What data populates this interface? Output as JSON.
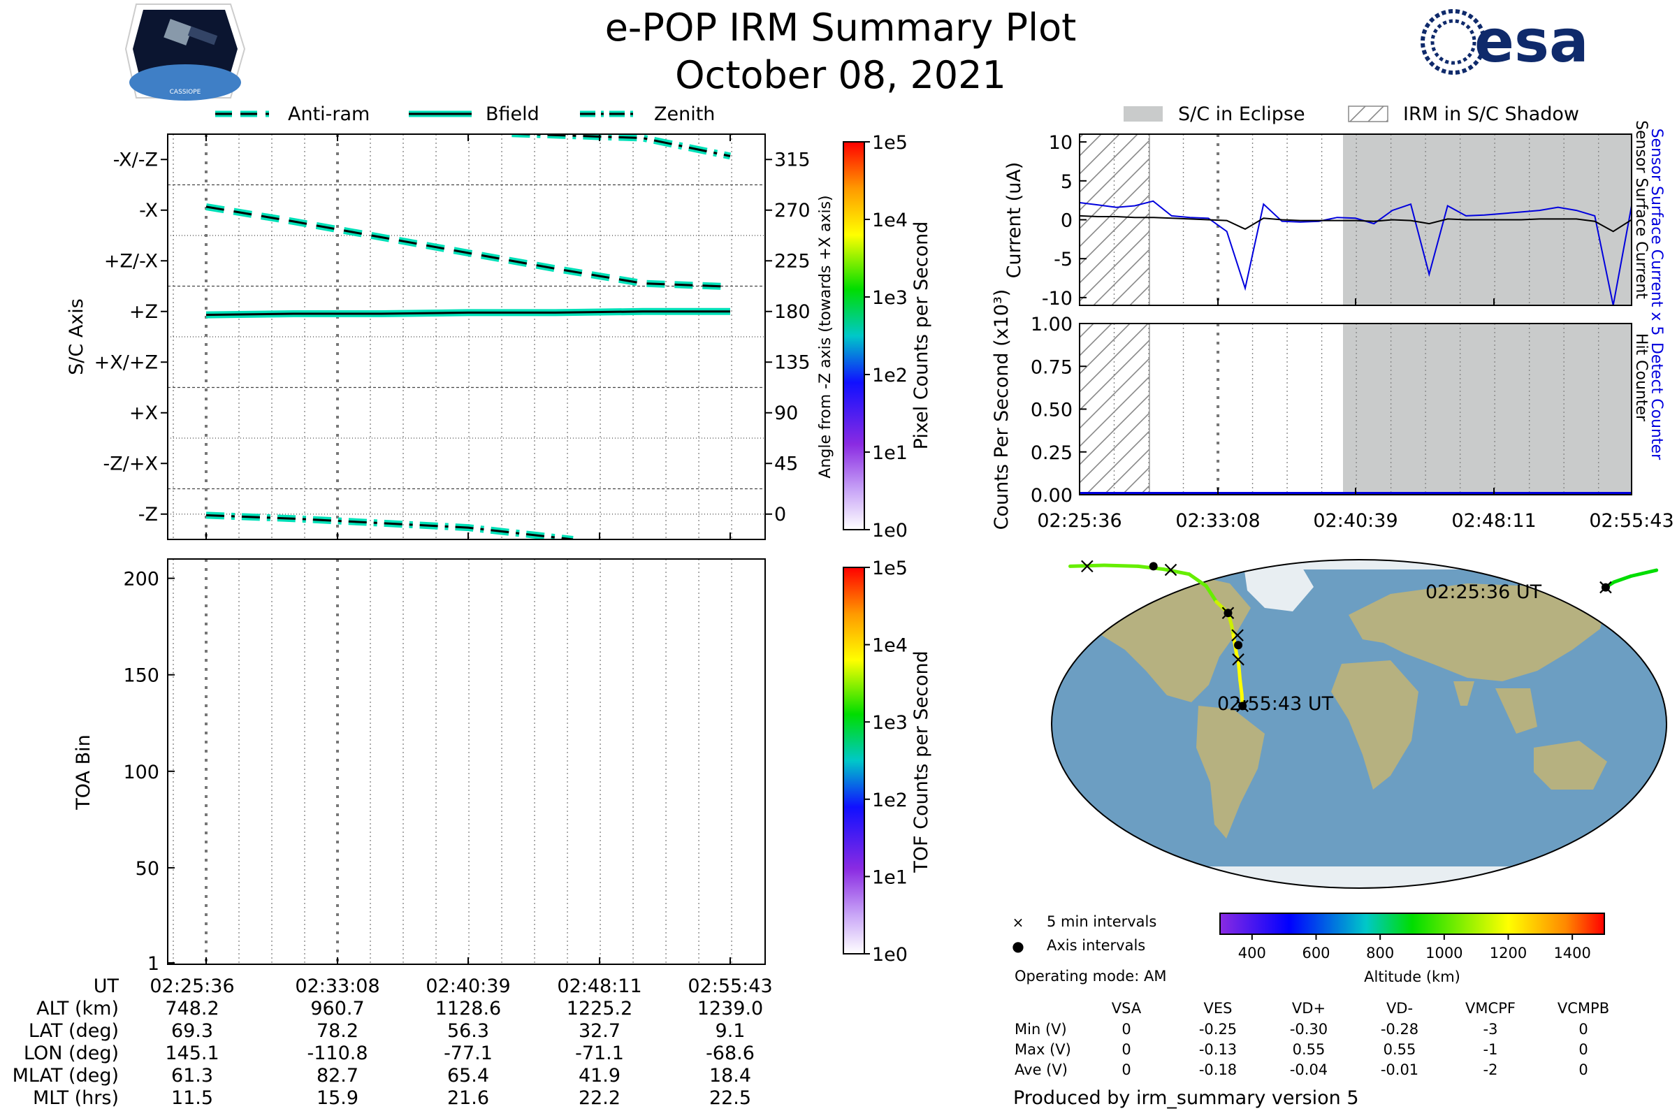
{
  "header": {
    "title": "e-POP IRM Summary Plot",
    "date": "October 08, 2021",
    "left_logo_text": "CASSIOPE",
    "right_logo_text": "esa"
  },
  "colors": {
    "bfield": "#00e0b8",
    "sensor_current": "#0000dd",
    "eclipse_gray": "#c9cbcb",
    "ocean": "#6c9ec2",
    "land": "#b6b180"
  },
  "legend_top_left": [
    {
      "label": "Anti-ram",
      "style": "dashed"
    },
    {
      "label": "Bfield",
      "style": "solid"
    },
    {
      "label": "Zenith",
      "style": "dashdot"
    }
  ],
  "legend_top_right": [
    {
      "label": "S/C in Eclipse",
      "style": "gray-fill"
    },
    {
      "label": "IRM in S/C Shadow",
      "style": "hatch"
    }
  ],
  "time_ticks": [
    "02:25:36",
    "02:33:08",
    "02:40:39",
    "02:48:11",
    "02:55:43"
  ],
  "chart_data": [
    {
      "id": "sc-axis",
      "type": "line",
      "ylabel": "S/C Axis",
      "y2label": "Angle from -Z axis (towards +X axis)",
      "y_ticks": [
        "-X/-Z",
        "-X",
        "+Z/-X",
        "+Z",
        "+X/+Z",
        "+X",
        "-Z/+X",
        "-Z"
      ],
      "y2_ticks": [
        315,
        270,
        225,
        180,
        135,
        90,
        45,
        0
      ],
      "ylim": [
        -22.5,
        337.5
      ],
      "x": [
        0,
        5,
        10,
        15,
        20,
        25,
        30
      ],
      "series": [
        {
          "name": "Anti-ram",
          "values": [
            273,
            260,
            246,
            232,
            218,
            205,
            null
          ]
        },
        {
          "name": "Bfield",
          "values": [
            177,
            178,
            178,
            179,
            179,
            180,
            180
          ]
        },
        {
          "name": "Zenith",
          "values": [
            -2,
            -5,
            -8,
            -12,
            -19,
            null,
            null
          ]
        },
        {
          "name": "Zenith",
          "values": [
            null,
            null,
            null,
            null,
            null,
            337,
            318
          ]
        }
      ],
      "colorbar": {
        "label": "Pixel Counts per Second",
        "ticks": [
          "1e5",
          "1e4",
          "1e3",
          "1e2",
          "1e1",
          "1e0"
        ]
      }
    },
    {
      "id": "toa",
      "type": "heatmap",
      "ylabel": "TOA Bin",
      "y_ticks": [
        200,
        150,
        100,
        50,
        1
      ],
      "ylim": [
        1,
        210
      ],
      "colorbar": {
        "label": "TOF Counts per Second",
        "ticks": [
          "1e5",
          "1e4",
          "1e3",
          "1e2",
          "1e1",
          "1e0"
        ]
      }
    },
    {
      "id": "current",
      "type": "line",
      "ylabel": "Current (uA)",
      "y_ticks": [
        10,
        5,
        0,
        -5,
        -10
      ],
      "ylim": [
        -11,
        11
      ],
      "right_labels": [
        "Sensor Surface Current x 5",
        "Sensor Surface Current"
      ],
      "x": [
        0,
        1,
        2,
        3,
        4,
        5,
        6,
        7,
        8,
        9,
        10,
        11,
        12,
        13,
        14,
        15,
        16,
        17,
        18,
        19,
        20,
        21,
        22,
        23,
        24,
        25,
        26,
        27,
        28,
        29,
        30
      ],
      "series": [
        {
          "name": "Sensor Surface Current x 5",
          "values": [
            2.2,
            1.9,
            1.6,
            1.8,
            2.4,
            0.5,
            0.3,
            0.2,
            -1.5,
            -8.8,
            2.0,
            -0.2,
            -0.3,
            -0.2,
            0.3,
            0.2,
            -0.5,
            1.2,
            2.0,
            -7.0,
            1.8,
            0.5,
            0.6,
            0.8,
            1.0,
            1.2,
            1.6,
            1.2,
            0.5,
            -11.0,
            1.8
          ]
        },
        {
          "name": "Sensor Surface Current",
          "values": [
            0.5,
            0.4,
            0.4,
            0.3,
            0.3,
            0.2,
            0.1,
            0.0,
            -0.1,
            -1.2,
            0.2,
            0.0,
            -0.1,
            -0.1,
            -0.1,
            -0.1,
            -0.2,
            0.0,
            -0.1,
            -0.5,
            0.1,
            0.0,
            0.0,
            0.0,
            0.0,
            0.1,
            0.1,
            0.1,
            -0.2,
            -1.5,
            0.0
          ]
        }
      ]
    },
    {
      "id": "counts",
      "type": "line",
      "ylabel": "Counts Per Second (x10³)",
      "y_ticks": [
        "1.00",
        "0.75",
        "0.50",
        "0.25",
        "0.00"
      ],
      "ylim": [
        0,
        1
      ],
      "right_labels": [
        "Detect Counter",
        "Hit Counter"
      ],
      "series": [
        {
          "name": "Detect Counter",
          "values": [
            0,
            0
          ]
        }
      ]
    },
    {
      "id": "ground-track",
      "type": "line",
      "labels": [
        "02:25:36 UT",
        "02:55:43 UT"
      ],
      "legend": [
        {
          "marker": "×",
          "label": "5 min intervals"
        },
        {
          "marker": "●",
          "label": "Axis intervals"
        }
      ],
      "colorbar": {
        "label": "Altitude (km)",
        "ticks": [
          400,
          600,
          800,
          1000,
          1200,
          1400
        ],
        "range": [
          300,
          1500
        ]
      },
      "track": {
        "lon": [
          145.1,
          150,
          160,
          175,
          -170,
          -150,
          -130,
          -115,
          -100,
          -90,
          -84,
          -77,
          -75,
          -74,
          -73,
          -72,
          -71.1,
          -70,
          -69,
          -68.6
        ],
        "lat": [
          69.3,
          72,
          75,
          78,
          80,
          80.5,
          80,
          78.5,
          76,
          70,
          62,
          56.3,
          50,
          45,
          40,
          35,
          32.7,
          22,
          15,
          9.1
        ],
        "alt_km": [
          748,
          780,
          830,
          880,
          920,
          950,
          965,
          975,
          1000,
          1040,
          1090,
          1129,
          1160,
          1190,
          1210,
          1222,
          1225,
          1232,
          1236,
          1239
        ]
      }
    }
  ],
  "ephemeris": {
    "row_labels": [
      "UT",
      "ALT (km)",
      "LAT (deg)",
      "LON (deg)",
      "MLAT (deg)",
      "MLT (hrs)"
    ],
    "columns": [
      [
        "02:25:36",
        "748.2",
        "69.3",
        "145.1",
        "61.3",
        "11.5"
      ],
      [
        "02:33:08",
        "960.7",
        "78.2",
        "-110.8",
        "82.7",
        "15.9"
      ],
      [
        "02:40:39",
        "1128.6",
        "56.3",
        "-77.1",
        "65.4",
        "21.6"
      ],
      [
        "02:48:11",
        "1225.2",
        "32.7",
        "-71.1",
        "41.9",
        "22.2"
      ],
      [
        "02:55:43",
        "1239.0",
        "9.1",
        "-68.6",
        "18.4",
        "22.5"
      ]
    ]
  },
  "operating_mode": "Operating mode: AM",
  "voltages": {
    "headers": [
      "VSA",
      "VES",
      "VD+",
      "VD-",
      "VMCPF",
      "VCMPB"
    ],
    "rows": [
      {
        "label": "Min (V)",
        "values": [
          "0",
          "-0.25",
          "-0.30",
          "-0.28",
          "-3",
          "0"
        ]
      },
      {
        "label": "Max (V)",
        "values": [
          "0",
          "-0.13",
          "0.55",
          "0.55",
          "-1",
          "0"
        ]
      },
      {
        "label": "Ave (V)",
        "values": [
          "0",
          "-0.18",
          "-0.04",
          "-0.01",
          "-2",
          "0"
        ]
      }
    ]
  },
  "footer": "Produced by irm_summary version 5"
}
